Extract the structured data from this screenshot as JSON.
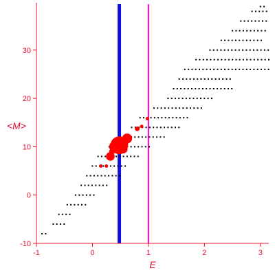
{
  "chart_data": {
    "type": "scatter",
    "xlabel": "E",
    "ylabel": "<M>",
    "xlim": [
      -1,
      3.15
    ],
    "ylim": [
      -10,
      39.5
    ],
    "x_ticks": [
      -1,
      0,
      1,
      2,
      3
    ],
    "y_ticks": [
      -10,
      0,
      10,
      20,
      30
    ],
    "x_tick_labels": [
      "-1",
      "0",
      "1",
      "2",
      "3"
    ],
    "y_tick_labels": [
      "-10",
      "0",
      "10",
      "20",
      "30"
    ],
    "grid": false,
    "axis_color": "#e8102a",
    "vlines": [
      {
        "x": 0.48,
        "color": "#1010e0",
        "width": "thick"
      },
      {
        "x": 1.0,
        "color": "#ff00cc",
        "width": "thin"
      }
    ],
    "series": [
      {
        "color": "#000000",
        "marker": "dot",
        "rows": [
          {
            "y": -8,
            "x_from": -0.9,
            "x_to": -0.8
          },
          {
            "y": -6,
            "x_from": -0.7,
            "x_to": -0.5
          },
          {
            "y": -4,
            "x_from": -0.6,
            "x_to": -0.4
          },
          {
            "y": -2,
            "x_from": -0.45,
            "x_to": -0.1
          },
          {
            "y": 0,
            "x_from": -0.3,
            "x_to": 0.05
          },
          {
            "y": 2,
            "x_from": -0.2,
            "x_to": 0.3
          },
          {
            "y": 4,
            "x_from": -0.1,
            "x_to": 0.5
          },
          {
            "y": 6,
            "x_from": 0.0,
            "x_to": 0.6
          },
          {
            "y": 8,
            "x_from": 0.1,
            "x_to": 0.85
          },
          {
            "y": 10,
            "x_from": 0.3,
            "x_to": 1.05
          },
          {
            "y": 12,
            "x_from": 0.5,
            "x_to": 1.3
          },
          {
            "y": 14,
            "x_from": 0.7,
            "x_to": 1.6
          },
          {
            "y": 16,
            "x_from": 0.85,
            "x_to": 1.7
          },
          {
            "y": 18,
            "x_from": 1.1,
            "x_to": 2.0
          },
          {
            "y": 20,
            "x_from": 1.35,
            "x_to": 2.15
          },
          {
            "y": 22,
            "x_from": 1.45,
            "x_to": 2.5
          },
          {
            "y": 24,
            "x_from": 1.55,
            "x_to": 2.5
          },
          {
            "y": 26,
            "x_from": 1.65,
            "x_to": 3.15
          },
          {
            "y": 28,
            "x_from": 1.85,
            "x_to": 3.15
          },
          {
            "y": 30,
            "x_from": 2.1,
            "x_to": 3.15
          },
          {
            "y": 32,
            "x_from": 2.3,
            "x_to": 3.05
          },
          {
            "y": 34,
            "x_from": 2.5,
            "x_to": 3.1
          },
          {
            "y": 36,
            "x_from": 2.65,
            "x_to": 3.15
          },
          {
            "y": 38,
            "x_from": 2.85,
            "x_to": 3.15
          },
          {
            "y": 39,
            "x_from": 3.0,
            "x_to": 3.1
          }
        ]
      },
      {
        "color": "#ff0000",
        "marker": "circle",
        "points": [
          {
            "x": 0.15,
            "y": 6,
            "size": 1
          },
          {
            "x": 0.25,
            "y": 6,
            "size": 1
          },
          {
            "x": 0.32,
            "y": 8,
            "size": 5
          },
          {
            "x": 0.35,
            "y": 9,
            "size": 3
          },
          {
            "x": 0.4,
            "y": 10,
            "size": 7
          },
          {
            "x": 0.48,
            "y": 10.3,
            "size": 12
          },
          {
            "x": 0.55,
            "y": 9.5,
            "size": 5
          },
          {
            "x": 0.62,
            "y": 11.7,
            "size": 6
          },
          {
            "x": 0.8,
            "y": 13.7,
            "size": 2
          },
          {
            "x": 0.88,
            "y": 14.2,
            "size": 1
          },
          {
            "x": 0.98,
            "y": 15.8,
            "size": 1
          }
        ]
      }
    ]
  }
}
